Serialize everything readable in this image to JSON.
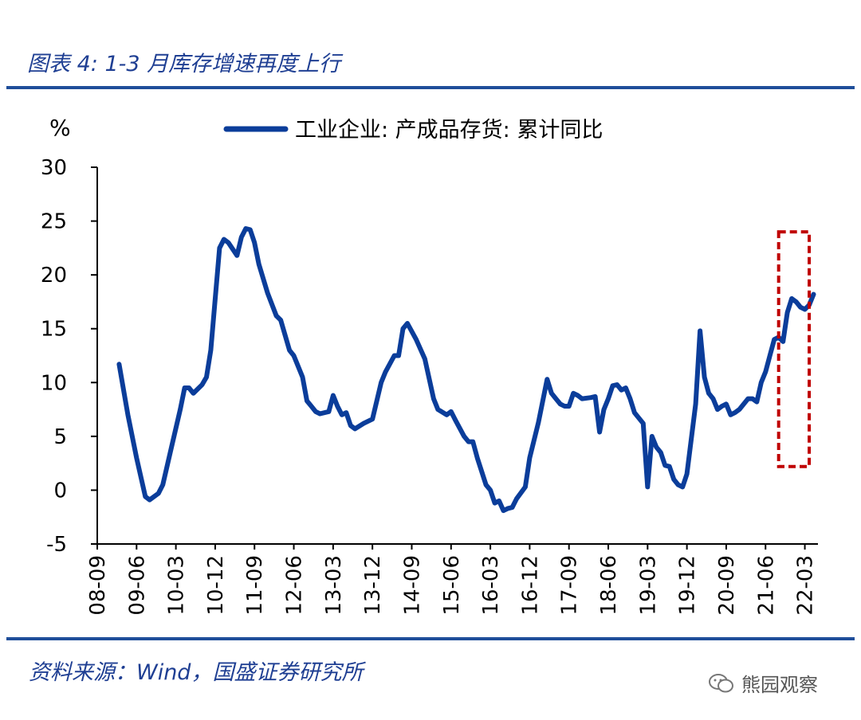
{
  "figure_title": "图表 4:  1-3 月库存增速再度上行",
  "source_note": "资料来源：Wind，国盛证券研究所",
  "watermark": "熊园观察",
  "colors": {
    "line": "#0b3d9a",
    "rule": "#1f4e9a",
    "highlight": "#c00000",
    "title": "#1f3f93"
  },
  "chart_data": {
    "type": "line",
    "title": "",
    "ylabel": "%",
    "xlabel": "",
    "ylim": [
      -5,
      30
    ],
    "yticks": [
      -5,
      0,
      5,
      10,
      15,
      20,
      25,
      30
    ],
    "xlim": [
      "2008-09",
      "2022-06"
    ],
    "xticks": [
      "08-09",
      "09-06",
      "10-03",
      "10-12",
      "11-09",
      "12-06",
      "13-03",
      "13-12",
      "14-09",
      "15-06",
      "16-03",
      "16-12",
      "17-09",
      "18-06",
      "19-03",
      "19-12",
      "20-09",
      "21-06",
      "22-03"
    ],
    "legend": {
      "position": "top-center",
      "label": "工业企业: 产成品存货: 累计同比"
    },
    "highlight_box": {
      "from": "2021-09",
      "to": "2022-04",
      "y_from": 2.2,
      "y_to": 24.0,
      "style": "dashed"
    },
    "series": [
      {
        "name": "工业企业: 产成品存货: 累计同比",
        "points": [
          [
            "2009-02",
            11.7
          ],
          [
            "2009-04",
            7.0
          ],
          [
            "2009-06",
            3.0
          ],
          [
            "2009-08",
            -0.6
          ],
          [
            "2009-09",
            -0.9
          ],
          [
            "2009-11",
            -0.3
          ],
          [
            "2009-12",
            0.5
          ],
          [
            "2010-02",
            4.0
          ],
          [
            "2010-04",
            7.5
          ],
          [
            "2010-05",
            9.5
          ],
          [
            "2010-06",
            9.5
          ],
          [
            "2010-07",
            9.0
          ],
          [
            "2010-09",
            9.8
          ],
          [
            "2010-10",
            10.5
          ],
          [
            "2010-11",
            13.0
          ],
          [
            "2011-01",
            22.5
          ],
          [
            "2011-02",
            23.3
          ],
          [
            "2011-03",
            23.0
          ],
          [
            "2011-05",
            21.8
          ],
          [
            "2011-06",
            23.5
          ],
          [
            "2011-07",
            24.3
          ],
          [
            "2011-08",
            24.2
          ],
          [
            "2011-09",
            23.0
          ],
          [
            "2011-10",
            21.0
          ],
          [
            "2011-12",
            18.3
          ],
          [
            "2012-02",
            16.2
          ],
          [
            "2012-03",
            15.8
          ],
          [
            "2012-05",
            13.0
          ],
          [
            "2012-06",
            12.5
          ],
          [
            "2012-08",
            10.5
          ],
          [
            "2012-09",
            8.3
          ],
          [
            "2012-10",
            7.8
          ],
          [
            "2012-11",
            7.3
          ],
          [
            "2012-12",
            7.1
          ],
          [
            "2013-02",
            7.3
          ],
          [
            "2013-03",
            8.8
          ],
          [
            "2013-04",
            7.8
          ],
          [
            "2013-05",
            7.0
          ],
          [
            "2013-06",
            7.2
          ],
          [
            "2013-07",
            6.0
          ],
          [
            "2013-08",
            5.7
          ],
          [
            "2013-10",
            6.2
          ],
          [
            "2013-12",
            6.6
          ],
          [
            "2014-02",
            10.0
          ],
          [
            "2014-03",
            11.0
          ],
          [
            "2014-05",
            12.5
          ],
          [
            "2014-06",
            12.5
          ],
          [
            "2014-07",
            15.0
          ],
          [
            "2014-08",
            15.5
          ],
          [
            "2014-10",
            14.0
          ],
          [
            "2014-12",
            12.2
          ],
          [
            "2015-02",
            8.5
          ],
          [
            "2015-03",
            7.5
          ],
          [
            "2015-05",
            7.0
          ],
          [
            "2015-06",
            7.3
          ],
          [
            "2015-07",
            6.5
          ],
          [
            "2015-09",
            5.0
          ],
          [
            "2015-10",
            4.5
          ],
          [
            "2015-11",
            4.5
          ],
          [
            "2015-12",
            3.0
          ],
          [
            "2016-02",
            0.5
          ],
          [
            "2016-03",
            0.0
          ],
          [
            "2016-04",
            -1.2
          ],
          [
            "2016-05",
            -1.0
          ],
          [
            "2016-06",
            -1.9
          ],
          [
            "2016-07",
            -1.7
          ],
          [
            "2016-08",
            -1.6
          ],
          [
            "2016-09",
            -0.8
          ],
          [
            "2016-11",
            0.3
          ],
          [
            "2016-12",
            3.0
          ],
          [
            "2017-02",
            6.3
          ],
          [
            "2017-04",
            10.3
          ],
          [
            "2017-05",
            9.0
          ],
          [
            "2017-06",
            8.5
          ],
          [
            "2017-07",
            8.0
          ],
          [
            "2017-08",
            7.8
          ],
          [
            "2017-09",
            7.8
          ],
          [
            "2017-10",
            9.0
          ],
          [
            "2017-11",
            8.8
          ],
          [
            "2017-12",
            8.5
          ],
          [
            "2018-02",
            8.6
          ],
          [
            "2018-03",
            8.7
          ],
          [
            "2018-04",
            5.4
          ],
          [
            "2018-05",
            7.5
          ],
          [
            "2018-06",
            8.5
          ],
          [
            "2018-07",
            9.7
          ],
          [
            "2018-08",
            9.8
          ],
          [
            "2018-09",
            9.3
          ],
          [
            "2018-10",
            9.5
          ],
          [
            "2018-11",
            8.5
          ],
          [
            "2018-12",
            7.2
          ],
          [
            "2019-02",
            6.2
          ],
          [
            "2019-03",
            0.3
          ],
          [
            "2019-04",
            5.0
          ],
          [
            "2019-05",
            4.0
          ],
          [
            "2019-06",
            3.5
          ],
          [
            "2019-07",
            2.3
          ],
          [
            "2019-08",
            2.2
          ],
          [
            "2019-09",
            1.0
          ],
          [
            "2019-10",
            0.5
          ],
          [
            "2019-11",
            0.3
          ],
          [
            "2019-12",
            1.5
          ],
          [
            "2020-02",
            8.0
          ],
          [
            "2020-03",
            14.8
          ],
          [
            "2020-04",
            10.5
          ],
          [
            "2020-05",
            9.0
          ],
          [
            "2020-06",
            8.5
          ],
          [
            "2020-07",
            7.5
          ],
          [
            "2020-08",
            7.8
          ],
          [
            "2020-09",
            8.0
          ],
          [
            "2020-10",
            7.0
          ],
          [
            "2020-11",
            7.2
          ],
          [
            "2020-12",
            7.5
          ],
          [
            "2021-02",
            8.5
          ],
          [
            "2021-03",
            8.5
          ],
          [
            "2021-04",
            8.2
          ],
          [
            "2021-05",
            10.0
          ],
          [
            "2021-06",
            11.0
          ],
          [
            "2021-07",
            12.5
          ],
          [
            "2021-08",
            14.0
          ],
          [
            "2021-09",
            14.2
          ],
          [
            "2021-10",
            13.8
          ],
          [
            "2021-11",
            16.5
          ],
          [
            "2021-12",
            17.8
          ],
          [
            "2022-01",
            17.5
          ],
          [
            "2022-02",
            17.0
          ],
          [
            "2022-03",
            16.8
          ],
          [
            "2022-04",
            17.2
          ],
          [
            "2022-05",
            18.2
          ]
        ]
      }
    ]
  }
}
